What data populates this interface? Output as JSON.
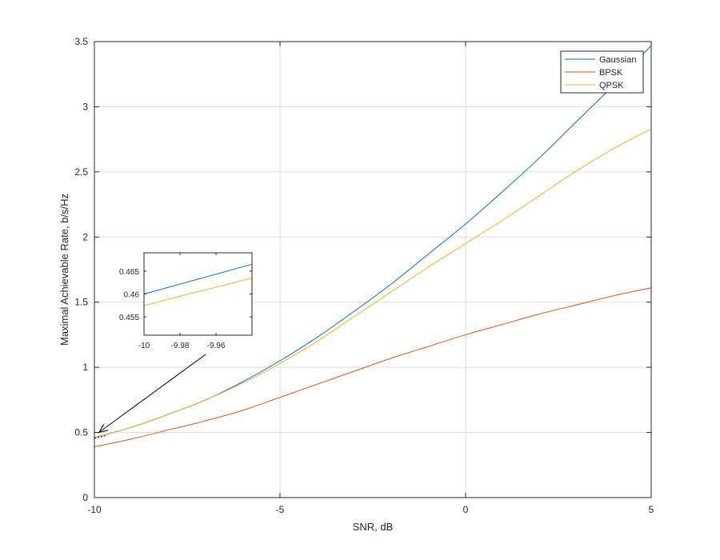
{
  "chart_data": [
    {
      "type": "line",
      "xlabel": "SNR, dB",
      "ylabel": "Maximal Achievable Rate, b/s/Hz",
      "xlim": [
        -10,
        5
      ],
      "ylim": [
        0,
        3.5
      ],
      "xticks": [
        -10,
        -5,
        0,
        5
      ],
      "xtick_labels": [
        "-10",
        "-5",
        "0",
        "5"
      ],
      "yticks": [
        0,
        0.5,
        1,
        1.5,
        2,
        2.5,
        3,
        3.5
      ],
      "ytick_labels": [
        "0",
        "0.5",
        "1",
        "1.5",
        "2",
        "2.5",
        "3",
        "3.5"
      ],
      "grid": true,
      "legend_position": "top-right",
      "series": [
        {
          "name": "Gaussian",
          "color": "#0072BD",
          "x": [
            -10,
            -9,
            -8,
            -7,
            -6,
            -5,
            -4,
            -3,
            -2,
            -1,
            0,
            1,
            2,
            3,
            4,
            5
          ],
          "y": [
            0.46,
            0.54,
            0.64,
            0.75,
            0.89,
            1.05,
            1.23,
            1.43,
            1.64,
            1.87,
            2.1,
            2.35,
            2.61,
            2.89,
            3.17,
            3.47
          ]
        },
        {
          "name": "BPSK",
          "color": "#D95319",
          "x": [
            -10,
            -9,
            -8,
            -7,
            -6,
            -5,
            -4,
            -3,
            -2,
            -1,
            0,
            1,
            2,
            3,
            4,
            5
          ],
          "y": [
            0.39,
            0.45,
            0.52,
            0.59,
            0.67,
            0.77,
            0.87,
            0.97,
            1.07,
            1.16,
            1.25,
            1.33,
            1.41,
            1.48,
            1.55,
            1.61
          ]
        },
        {
          "name": "QPSK",
          "color": "#EDB120",
          "x": [
            -10,
            -9,
            -8,
            -7,
            -6,
            -5,
            -4,
            -3,
            -2,
            -1,
            0,
            1,
            2,
            3,
            4,
            5
          ],
          "y": [
            0.458,
            0.54,
            0.64,
            0.75,
            0.88,
            1.03,
            1.2,
            1.39,
            1.58,
            1.77,
            1.95,
            2.13,
            2.32,
            2.51,
            2.68,
            2.83
          ]
        }
      ],
      "annotation": {
        "type": "arrow",
        "from": [
          -7.0,
          1.1
        ],
        "to": [
          -9.88,
          0.5
        ]
      }
    },
    {
      "type": "line",
      "role": "inset",
      "xlim": [
        -10,
        -9.94
      ],
      "ylim": [
        0.451,
        0.469
      ],
      "xticks": [
        -10,
        -9.98,
        -9.96
      ],
      "xtick_labels": [
        "-10",
        "-9.98",
        "-9.96"
      ],
      "yticks": [
        0.455,
        0.46,
        0.465
      ],
      "ytick_labels": [
        "0.455",
        "0.46",
        "0.465"
      ],
      "grid": false,
      "series": [
        {
          "name": "Gaussian",
          "color": "#0072BD",
          "x": [
            -10,
            -9.94
          ],
          "y": [
            0.46,
            0.4665
          ]
        },
        {
          "name": "QPSK",
          "color": "#EDB120",
          "x": [
            -10,
            -9.94
          ],
          "y": [
            0.4575,
            0.4635
          ]
        }
      ]
    }
  ]
}
